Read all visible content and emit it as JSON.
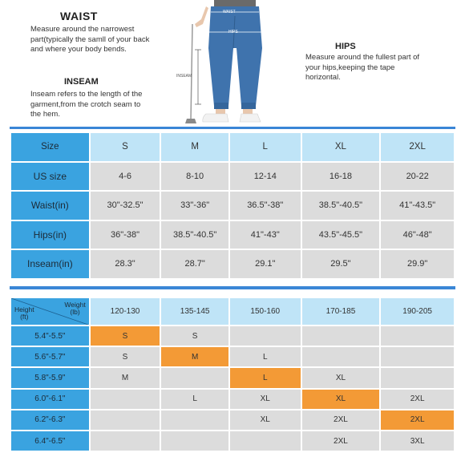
{
  "waist": {
    "title": "WAIST",
    "body": "Measure around the narrowest part(typically the samll of your back and where your body bends."
  },
  "inseam": {
    "title": "INSEAM",
    "body": "Inseam refers to the length of the garment,from the crotch seam to the hem."
  },
  "hips": {
    "title": "HIPS",
    "body": "Measure around the fullest part of your hips,keeping the tape horizontal."
  },
  "figure": {
    "waist_label": "WAIST",
    "hips_label": "HIPS",
    "inseam_label": "INSEAM",
    "pants_color": "#3f73ad"
  },
  "size_table": {
    "columns": [
      "Size",
      "S",
      "M",
      "L",
      "XL",
      "2XL"
    ],
    "rows": [
      [
        "US size",
        "4-6",
        "8-10",
        "12-14",
        "16-18",
        "20-22"
      ],
      [
        "Waist(in)",
        "30\"-32.5\"",
        "33\"-36\"",
        "36.5\"-38\"",
        "38.5\"-40.5\"",
        "41\"-43.5\""
      ],
      [
        "Hips(in)",
        "36\"-38\"",
        "38.5\"-40.5\"",
        "41\"-43\"",
        "43.5\"-45.5\"",
        "46\"-48\""
      ],
      [
        "Inseam(in)",
        "28.3\"",
        "28.7\"",
        "29.1\"",
        "29.5\"",
        "29.9\""
      ]
    ]
  },
  "hw_table": {
    "corner_height": "Height\n(ft)",
    "corner_weight": "Weight\n(lb)",
    "weights": [
      "120-130",
      "135-145",
      "150-160",
      "170-185",
      "190-205"
    ],
    "rows": [
      {
        "height": "5.4\"-5.5\"",
        "cells": [
          "S",
          "S",
          "",
          "",
          ""
        ],
        "highlight": 0
      },
      {
        "height": "5.6\"-5.7\"",
        "cells": [
          "S",
          "M",
          "L",
          "",
          ""
        ],
        "highlight": 1
      },
      {
        "height": "5.8\"-5.9\"",
        "cells": [
          "M",
          "",
          "L",
          "XL",
          ""
        ],
        "highlight": 2
      },
      {
        "height": "6.0\"-6.1\"",
        "cells": [
          "",
          "L",
          "XL",
          "XL",
          "2XL"
        ],
        "highlight": 3
      },
      {
        "height": "6.2\"-6.3\"",
        "cells": [
          "",
          "",
          "XL",
          "2XL",
          "2XL"
        ],
        "highlight": 4
      },
      {
        "height": "6.4\"-6.5\"",
        "cells": [
          "",
          "",
          "",
          "2XL",
          "3XL"
        ],
        "highlight": -1
      }
    ]
  },
  "colors": {
    "accent_blue": "#3aa3e0",
    "header_light_blue": "#bfe4f7",
    "cell_gray": "#dcdcdc",
    "highlight_orange": "#f39a36",
    "separator_blue": "#3a86d6"
  }
}
